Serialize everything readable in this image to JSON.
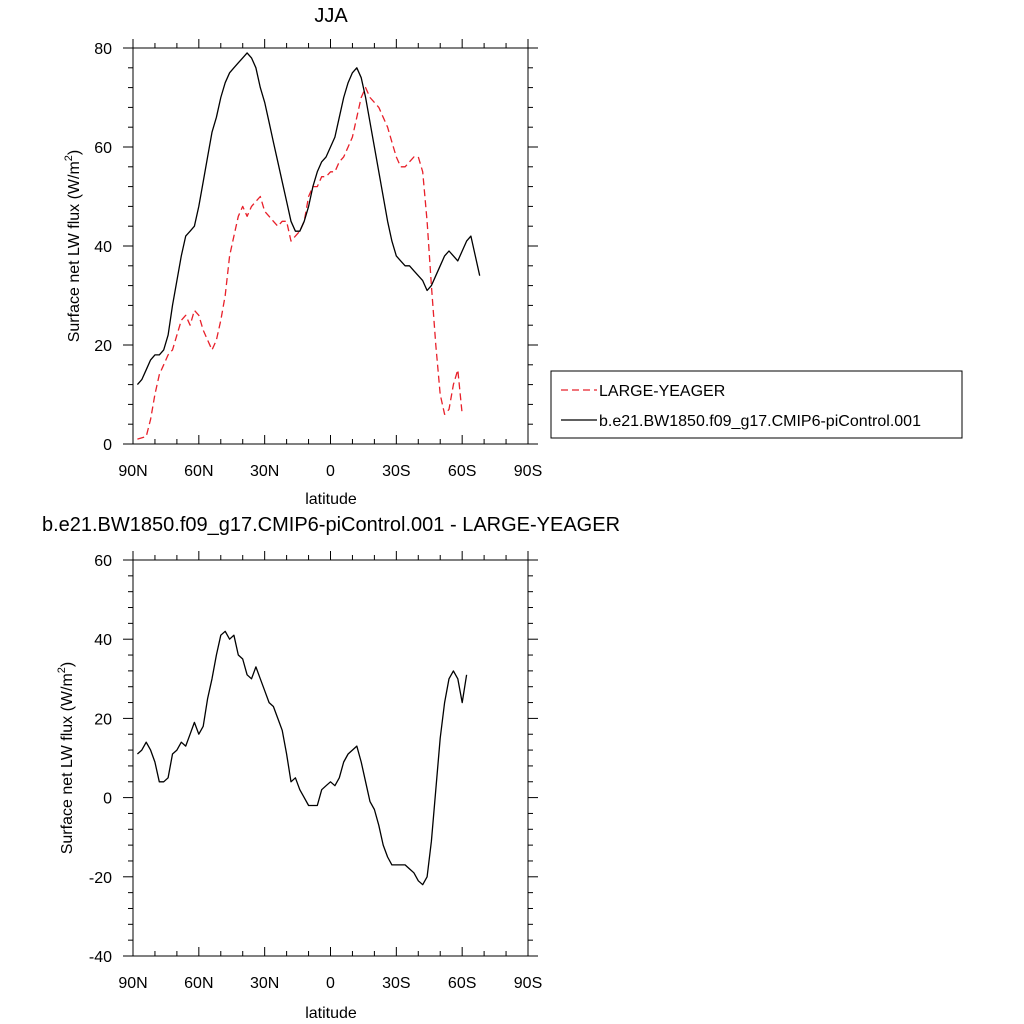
{
  "chart_data": [
    {
      "type": "line",
      "title": "JJA",
      "xlabel": "latitude",
      "ylabel": "Surface net LW flux (W/m",
      "ylabel_sup": "2",
      "ylabel_end": ")",
      "xlim": [
        90,
        -90
      ],
      "ylim": [
        0,
        80
      ],
      "x_ticks": [
        90,
        60,
        30,
        0,
        -30,
        -60,
        -90
      ],
      "x_tick_labels": [
        "90N",
        "60N",
        "30N",
        "0",
        "30S",
        "60S",
        "90S"
      ],
      "y_ticks": [
        0,
        20,
        40,
        60,
        80
      ],
      "y_tick_labels": [
        "0",
        "20",
        "40",
        "60",
        "80"
      ],
      "grid": false,
      "legend_position": "right",
      "series": [
        {
          "name": "LARGE-YEAGER",
          "color": "#e8202a",
          "dash": "dashed",
          "points": [
            [
              88,
              1
            ],
            [
              84,
              1.5
            ],
            [
              82,
              5
            ],
            [
              80,
              10
            ],
            [
              78,
              14
            ],
            [
              76,
              16
            ],
            [
              74,
              18
            ],
            [
              72,
              19
            ],
            [
              70,
              22
            ],
            [
              68,
              25
            ],
            [
              66,
              26
            ],
            [
              64,
              24
            ],
            [
              62,
              27
            ],
            [
              60,
              26
            ],
            [
              58,
              23
            ],
            [
              56,
              21
            ],
            [
              54,
              19
            ],
            [
              52,
              21
            ],
            [
              50,
              25
            ],
            [
              48,
              30
            ],
            [
              46,
              38
            ],
            [
              44,
              42
            ],
            [
              42,
              46
            ],
            [
              40,
              48
            ],
            [
              38,
              46
            ],
            [
              36,
              48
            ],
            [
              34,
              49
            ],
            [
              32,
              50
            ],
            [
              30,
              47
            ],
            [
              28,
              46
            ],
            [
              26,
              45
            ],
            [
              24,
              44
            ],
            [
              22,
              45
            ],
            [
              20,
              45
            ],
            [
              18,
              41
            ],
            [
              16,
              42
            ],
            [
              14,
              43
            ],
            [
              12,
              45
            ],
            [
              10,
              50
            ],
            [
              8,
              52
            ],
            [
              6,
              52
            ],
            [
              4,
              54
            ],
            [
              2,
              54
            ],
            [
              0,
              55
            ],
            [
              -2,
              55
            ],
            [
              -4,
              57
            ],
            [
              -6,
              58
            ],
            [
              -8,
              60
            ],
            [
              -10,
              62
            ],
            [
              -12,
              66
            ],
            [
              -14,
              70
            ],
            [
              -16,
              72
            ],
            [
              -18,
              70
            ],
            [
              -20,
              69
            ],
            [
              -22,
              68
            ],
            [
              -24,
              66
            ],
            [
              -26,
              64
            ],
            [
              -28,
              61
            ],
            [
              -30,
              58
            ],
            [
              -32,
              56
            ],
            [
              -34,
              56
            ],
            [
              -36,
              57
            ],
            [
              -38,
              58
            ],
            [
              -40,
              58
            ],
            [
              -42,
              55
            ],
            [
              -44,
              45
            ],
            [
              -46,
              32
            ],
            [
              -48,
              20
            ],
            [
              -50,
              10
            ],
            [
              -52,
              6
            ],
            [
              -54,
              7
            ],
            [
              -56,
              12
            ],
            [
              -58,
              15
            ],
            [
              -60,
              6
            ]
          ]
        },
        {
          "name": "b.e21.BW1850.f09_g17.CMIP6-piControl.001",
          "color": "#000000",
          "dash": "solid",
          "points": [
            [
              88,
              12
            ],
            [
              86,
              13
            ],
            [
              84,
              15
            ],
            [
              82,
              17
            ],
            [
              80,
              18
            ],
            [
              78,
              18
            ],
            [
              76,
              19
            ],
            [
              74,
              22
            ],
            [
              72,
              28
            ],
            [
              70,
              33
            ],
            [
              68,
              38
            ],
            [
              66,
              42
            ],
            [
              64,
              43
            ],
            [
              62,
              44
            ],
            [
              60,
              48
            ],
            [
              58,
              53
            ],
            [
              56,
              58
            ],
            [
              54,
              63
            ],
            [
              52,
              66
            ],
            [
              50,
              70
            ],
            [
              48,
              73
            ],
            [
              46,
              75
            ],
            [
              44,
              76
            ],
            [
              42,
              77
            ],
            [
              40,
              78
            ],
            [
              38,
              79
            ],
            [
              36,
              78
            ],
            [
              34,
              76
            ],
            [
              32,
              72
            ],
            [
              30,
              69
            ],
            [
              28,
              65
            ],
            [
              26,
              61
            ],
            [
              24,
              57
            ],
            [
              22,
              53
            ],
            [
              20,
              49
            ],
            [
              18,
              45
            ],
            [
              16,
              43
            ],
            [
              14,
              43
            ],
            [
              12,
              45
            ],
            [
              10,
              48
            ],
            [
              8,
              52
            ],
            [
              6,
              55
            ],
            [
              4,
              57
            ],
            [
              2,
              58
            ],
            [
              0,
              60
            ],
            [
              -2,
              62
            ],
            [
              -4,
              66
            ],
            [
              -6,
              70
            ],
            [
              -8,
              73
            ],
            [
              -10,
              75
            ],
            [
              -12,
              76
            ],
            [
              -14,
              74
            ],
            [
              -16,
              70
            ],
            [
              -18,
              65
            ],
            [
              -20,
              60
            ],
            [
              -22,
              55
            ],
            [
              -24,
              50
            ],
            [
              -26,
              45
            ],
            [
              -28,
              41
            ],
            [
              -30,
              38
            ],
            [
              -32,
              37
            ],
            [
              -34,
              36
            ],
            [
              -36,
              36
            ],
            [
              -38,
              35
            ],
            [
              -40,
              34
            ],
            [
              -42,
              33
            ],
            [
              -44,
              31
            ],
            [
              -46,
              32
            ],
            [
              -48,
              34
            ],
            [
              -50,
              36
            ],
            [
              -52,
              38
            ],
            [
              -54,
              39
            ],
            [
              -56,
              38
            ],
            [
              -58,
              37
            ],
            [
              -60,
              39
            ],
            [
              -62,
              41
            ],
            [
              -64,
              42
            ],
            [
              -66,
              38
            ],
            [
              -68,
              34
            ]
          ]
        }
      ]
    },
    {
      "type": "line",
      "title": "b.e21.BW1850.f09_g17.CMIP6-piControl.001 - LARGE-YEAGER",
      "xlabel": "latitude",
      "ylabel": "Surface net LW flux (W/m",
      "ylabel_sup": "2",
      "ylabel_end": ")",
      "xlim": [
        90,
        -90
      ],
      "ylim": [
        -40,
        60
      ],
      "x_ticks": [
        90,
        60,
        30,
        0,
        -30,
        -60,
        -90
      ],
      "x_tick_labels": [
        "90N",
        "60N",
        "30N",
        "0",
        "30S",
        "60S",
        "90S"
      ],
      "y_ticks": [
        -40,
        -20,
        0,
        20,
        40,
        60
      ],
      "y_tick_labels": [
        "-40",
        "-20",
        "0",
        "20",
        "40",
        "60"
      ],
      "grid": false,
      "series": [
        {
          "color": "#000000",
          "dash": "solid",
          "points": [
            [
              88,
              11
            ],
            [
              86,
              12
            ],
            [
              84,
              14
            ],
            [
              82,
              12
            ],
            [
              80,
              9
            ],
            [
              78,
              4
            ],
            [
              76,
              4
            ],
            [
              74,
              5
            ],
            [
              72,
              11
            ],
            [
              70,
              12
            ],
            [
              68,
              14
            ],
            [
              66,
              13
            ],
            [
              64,
              16
            ],
            [
              62,
              19
            ],
            [
              60,
              16
            ],
            [
              58,
              18
            ],
            [
              56,
              25
            ],
            [
              54,
              30
            ],
            [
              52,
              36
            ],
            [
              50,
              41
            ],
            [
              48,
              42
            ],
            [
              46,
              40
            ],
            [
              44,
              41
            ],
            [
              42,
              36
            ],
            [
              40,
              35
            ],
            [
              38,
              31
            ],
            [
              36,
              30
            ],
            [
              34,
              33
            ],
            [
              32,
              30
            ],
            [
              30,
              27
            ],
            [
              28,
              24
            ],
            [
              26,
              23
            ],
            [
              24,
              20
            ],
            [
              22,
              17
            ],
            [
              20,
              11
            ],
            [
              18,
              4
            ],
            [
              16,
              5
            ],
            [
              14,
              2
            ],
            [
              12,
              0
            ],
            [
              10,
              -2
            ],
            [
              8,
              -2
            ],
            [
              6,
              -2
            ],
            [
              4,
              2
            ],
            [
              2,
              3
            ],
            [
              0,
              4
            ],
            [
              -2,
              3
            ],
            [
              -4,
              5
            ],
            [
              -6,
              9
            ],
            [
              -8,
              11
            ],
            [
              -10,
              12
            ],
            [
              -12,
              13
            ],
            [
              -14,
              9
            ],
            [
              -16,
              4
            ],
            [
              -18,
              -1
            ],
            [
              -20,
              -3
            ],
            [
              -22,
              -7
            ],
            [
              -24,
              -12
            ],
            [
              -26,
              -15
            ],
            [
              -28,
              -17
            ],
            [
              -30,
              -17
            ],
            [
              -32,
              -17
            ],
            [
              -34,
              -17
            ],
            [
              -36,
              -18
            ],
            [
              -38,
              -19
            ],
            [
              -40,
              -21
            ],
            [
              -42,
              -22
            ],
            [
              -44,
              -20
            ],
            [
              -46,
              -11
            ],
            [
              -48,
              2
            ],
            [
              -50,
              15
            ],
            [
              -52,
              24
            ],
            [
              -54,
              30
            ],
            [
              -56,
              32
            ],
            [
              -58,
              30
            ],
            [
              -60,
              24
            ],
            [
              -62,
              31
            ]
          ]
        }
      ]
    }
  ]
}
